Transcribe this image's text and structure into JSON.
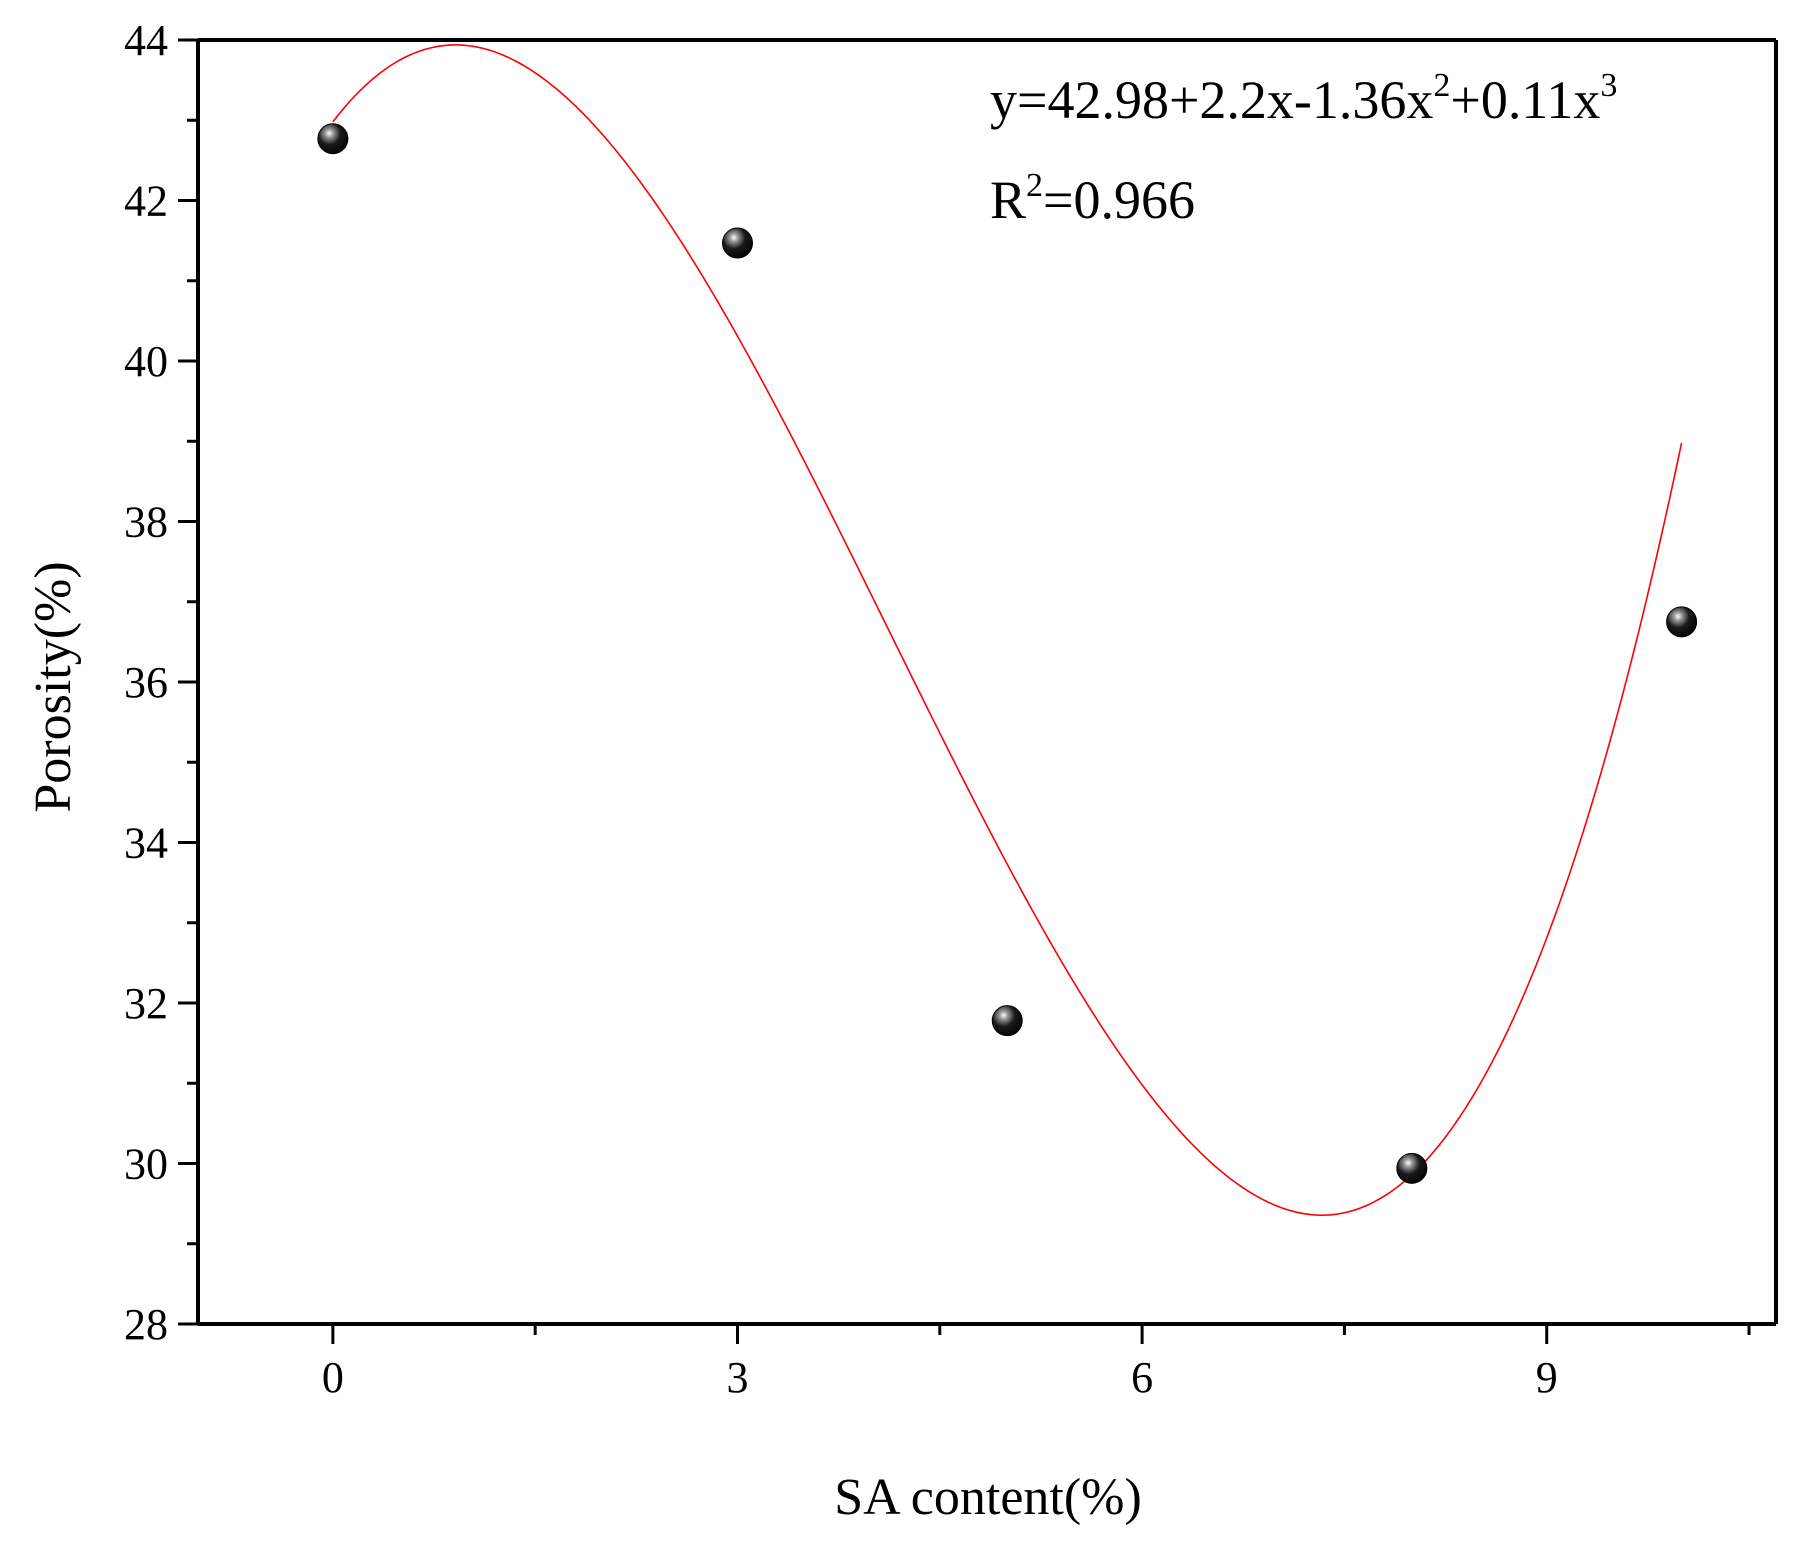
{
  "chart_data": {
    "type": "scatter",
    "title": "",
    "xlabel": "SA content(%)",
    "ylabel": "Porosity(%)",
    "xlim": [
      -1,
      10.7
    ],
    "ylim": [
      28,
      44
    ],
    "x_ticks": [
      0,
      3,
      6,
      9
    ],
    "x_tick_labels": [
      "0",
      "3",
      "6",
      "9"
    ],
    "y_ticks": [
      28,
      30,
      32,
      34,
      36,
      38,
      40,
      42,
      44
    ],
    "y_tick_labels": [
      "28",
      "30",
      "32",
      "34",
      "36",
      "38",
      "40",
      "42",
      "44"
    ],
    "grid": false,
    "legend": "none",
    "series": [
      {
        "type": "scatter",
        "x": [
          0,
          3,
          5,
          8,
          10
        ],
        "y": [
          42.77,
          41.47,
          31.78,
          29.94,
          36.75
        ],
        "color": "#000000"
      },
      {
        "type": "line",
        "fit": "polynomial-3",
        "coefficients": [
          42.98,
          2.2,
          -1.36,
          0.11
        ],
        "x_range": [
          0,
          10
        ],
        "color": "#ff0000"
      }
    ],
    "annotations": {
      "equation": {
        "base": "y=42.98+2.2x-1.36x",
        "sq": "2",
        "mid": "+0.11x",
        "cube": "3"
      },
      "r2": {
        "base": "R",
        "sup": "2",
        "value": "=0.966"
      }
    }
  }
}
